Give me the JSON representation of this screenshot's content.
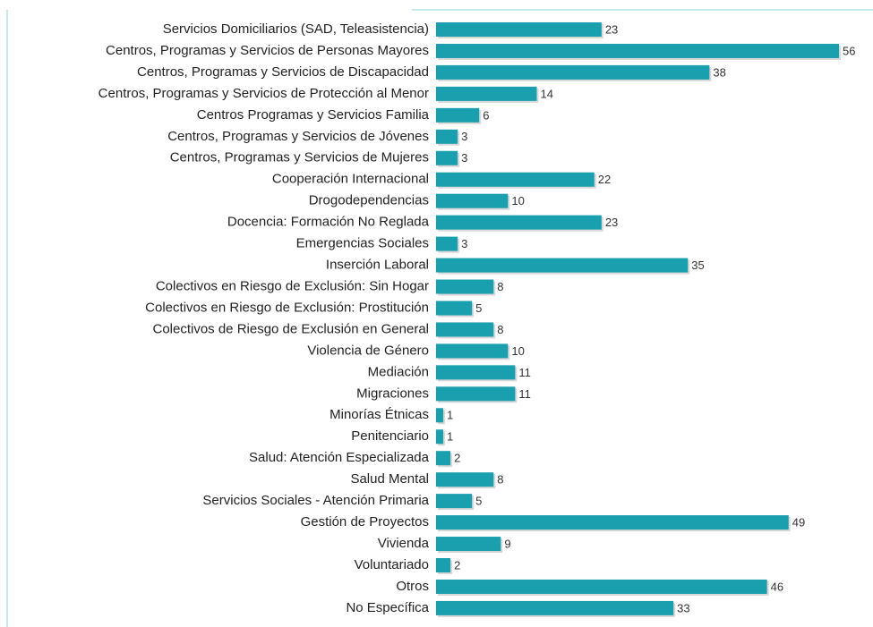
{
  "chart_data": {
    "type": "barh",
    "color": "#1a9fae",
    "categories": [
      "Servicios Domiciliarios (SAD, Teleasistencia)",
      "Centros, Programas y Servicios de Personas Mayores",
      "Centros, Programas y Servicios de Discapacidad",
      "Centros, Programas y Servicios de Protección al Menor",
      "Centros Programas y Servicios Familia",
      "Centros, Programas y Servicios de Jóvenes",
      "Centros, Programas y Servicios de Mujeres",
      "Cooperación Internacional",
      "Drogodependencias",
      "Docencia: Formación No Reglada",
      "Emergencias Sociales",
      "Inserción Laboral",
      "Colectivos en Riesgo de Exclusión: Sin Hogar",
      "Colectivos en Riesgo de Exclusión: Prostitución",
      "Colectivos de Riesgo de Exclusión en General",
      "Violencia de Género",
      "Mediación",
      "Migraciones",
      "Minorías Étnicas",
      "Penitenciario",
      "Salud: Atención Especializada",
      "Salud Mental",
      "Servicios Sociales - Atención Primaria",
      "Gestión de Proyectos",
      "Vivienda",
      "Voluntariado",
      "Otros",
      "No Específica"
    ],
    "values": [
      23,
      56,
      38,
      14,
      6,
      3,
      3,
      22,
      10,
      23,
      3,
      35,
      8,
      5,
      8,
      10,
      11,
      11,
      1,
      1,
      2,
      8,
      5,
      49,
      9,
      2,
      46,
      33
    ]
  }
}
